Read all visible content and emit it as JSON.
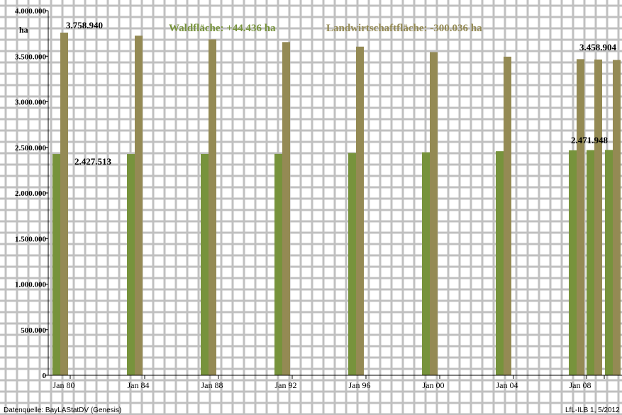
{
  "chart_data": {
    "type": "bar",
    "unit_label": "ha",
    "ylim": [
      0,
      4000000
    ],
    "y_ticks": [
      "0",
      "500.000",
      "1.000.000",
      "1.500.000",
      "2.000.000",
      "2.500.000",
      "3.000.000",
      "3.500.000",
      "4.000.000"
    ],
    "categories": [
      "Jan 80",
      "Jan 84",
      "Jan 88",
      "Jan 92",
      "Jan 96",
      "Jan 00",
      "Jan 04",
      "Jan 08",
      "",
      ""
    ],
    "series": [
      {
        "color": "#77933c",
        "values": [
          2427513,
          2427513,
          2428000,
          2429000,
          2438000,
          2446000,
          2458000,
          2468000,
          2470000,
          2471948
        ]
      },
      {
        "color": "#948a54",
        "values": [
          3758940,
          3725000,
          3685000,
          3655000,
          3605000,
          3545000,
          3495000,
          3468000,
          3464000,
          3458904
        ]
      }
    ],
    "grid": true,
    "data_labels": [
      "3.758.940",
      "2.427.513",
      "3.458.904",
      "2.471.948"
    ],
    "annotations": {
      "forest": "Waldfläche: +44.436 ha",
      "forest_color": "#77933c",
      "agri": "Landwirtschaftfläche: -300.036 ha",
      "agri_color": "#948a54"
    },
    "source": "Datenquelle: BayLAStatDV (Genesis)",
    "credit": "LfL-ILB 1, 5/2012"
  }
}
